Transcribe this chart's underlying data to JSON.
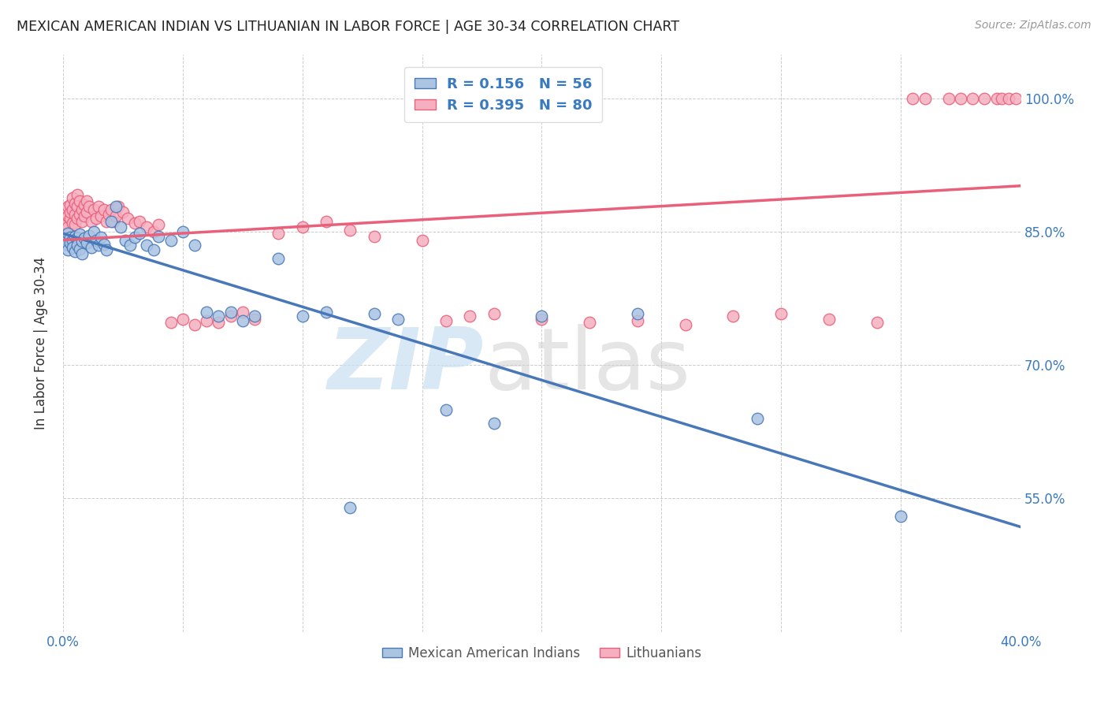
{
  "title": "MEXICAN AMERICAN INDIAN VS LITHUANIAN IN LABOR FORCE | AGE 30-34 CORRELATION CHART",
  "source": "Source: ZipAtlas.com",
  "ylabel": "In Labor Force | Age 30-34",
  "xlim": [
    0.0,
    0.4
  ],
  "ylim": [
    0.4,
    1.05
  ],
  "xtick_positions": [
    0.0,
    0.05,
    0.1,
    0.15,
    0.2,
    0.25,
    0.3,
    0.35,
    0.4
  ],
  "xticklabels": [
    "0.0%",
    "",
    "",
    "",
    "",
    "",
    "",
    "",
    "40.0%"
  ],
  "ytick_positions": [
    0.55,
    0.7,
    0.85,
    1.0
  ],
  "yticklabels": [
    "55.0%",
    "70.0%",
    "85.0%",
    "100.0%"
  ],
  "blue_R": 0.156,
  "blue_N": 56,
  "pink_R": 0.395,
  "pink_N": 80,
  "blue_color": "#aac4e2",
  "pink_color": "#f5afc0",
  "blue_line_color": "#4878b8",
  "pink_line_color": "#e8607a",
  "legend_label_blue": "Mexican American Indians",
  "legend_label_pink": "Lithuanians",
  "blue_scatter_x": [
    0.001,
    0.001,
    0.002,
    0.002,
    0.003,
    0.003,
    0.004,
    0.004,
    0.005,
    0.005,
    0.006,
    0.006,
    0.007,
    0.007,
    0.008,
    0.008,
    0.009,
    0.01,
    0.011,
    0.012,
    0.013,
    0.014,
    0.015,
    0.016,
    0.017,
    0.018,
    0.02,
    0.022,
    0.024,
    0.026,
    0.028,
    0.03,
    0.032,
    0.035,
    0.038,
    0.04,
    0.045,
    0.05,
    0.055,
    0.06,
    0.065,
    0.07,
    0.075,
    0.08,
    0.09,
    0.1,
    0.11,
    0.12,
    0.13,
    0.14,
    0.16,
    0.18,
    0.2,
    0.24,
    0.29,
    0.35
  ],
  "blue_scatter_y": [
    0.842,
    0.836,
    0.848,
    0.83,
    0.844,
    0.838,
    0.84,
    0.832,
    0.845,
    0.828,
    0.843,
    0.835,
    0.847,
    0.831,
    0.839,
    0.825,
    0.843,
    0.838,
    0.846,
    0.832,
    0.85,
    0.84,
    0.835,
    0.844,
    0.836,
    0.83,
    0.862,
    0.878,
    0.855,
    0.84,
    0.835,
    0.844,
    0.848,
    0.835,
    0.83,
    0.845,
    0.84,
    0.85,
    0.835,
    0.76,
    0.755,
    0.76,
    0.75,
    0.755,
    0.82,
    0.755,
    0.76,
    0.54,
    0.758,
    0.752,
    0.65,
    0.635,
    0.755,
    0.758,
    0.64,
    0.53
  ],
  "pink_scatter_x": [
    0.001,
    0.001,
    0.002,
    0.002,
    0.002,
    0.003,
    0.003,
    0.003,
    0.004,
    0.004,
    0.004,
    0.005,
    0.005,
    0.005,
    0.006,
    0.006,
    0.006,
    0.007,
    0.007,
    0.008,
    0.008,
    0.009,
    0.009,
    0.01,
    0.01,
    0.011,
    0.012,
    0.013,
    0.014,
    0.015,
    0.016,
    0.017,
    0.018,
    0.019,
    0.02,
    0.021,
    0.022,
    0.023,
    0.025,
    0.027,
    0.03,
    0.032,
    0.035,
    0.038,
    0.04,
    0.045,
    0.05,
    0.055,
    0.06,
    0.065,
    0.07,
    0.075,
    0.08,
    0.09,
    0.1,
    0.11,
    0.12,
    0.13,
    0.15,
    0.16,
    0.17,
    0.18,
    0.2,
    0.22,
    0.24,
    0.26,
    0.28,
    0.3,
    0.32,
    0.34,
    0.355,
    0.36,
    0.37,
    0.375,
    0.38,
    0.385,
    0.39,
    0.392,
    0.395,
    0.398
  ],
  "pink_scatter_y": [
    0.848,
    0.86,
    0.855,
    0.868,
    0.878,
    0.865,
    0.872,
    0.88,
    0.86,
    0.875,
    0.888,
    0.858,
    0.87,
    0.882,
    0.865,
    0.878,
    0.892,
    0.87,
    0.885,
    0.862,
    0.875,
    0.868,
    0.88,
    0.872,
    0.885,
    0.878,
    0.862,
    0.875,
    0.865,
    0.878,
    0.868,
    0.875,
    0.862,
    0.87,
    0.875,
    0.862,
    0.868,
    0.878,
    0.872,
    0.865,
    0.86,
    0.862,
    0.855,
    0.85,
    0.858,
    0.748,
    0.752,
    0.745,
    0.75,
    0.748,
    0.755,
    0.76,
    0.752,
    0.848,
    0.855,
    0.862,
    0.852,
    0.845,
    0.84,
    0.75,
    0.755,
    0.758,
    0.752,
    0.748,
    0.75,
    0.745,
    0.755,
    0.758,
    0.752,
    0.748,
    1.0,
    1.0,
    1.0,
    1.0,
    1.0,
    1.0,
    1.0,
    1.0,
    1.0,
    1.0
  ]
}
